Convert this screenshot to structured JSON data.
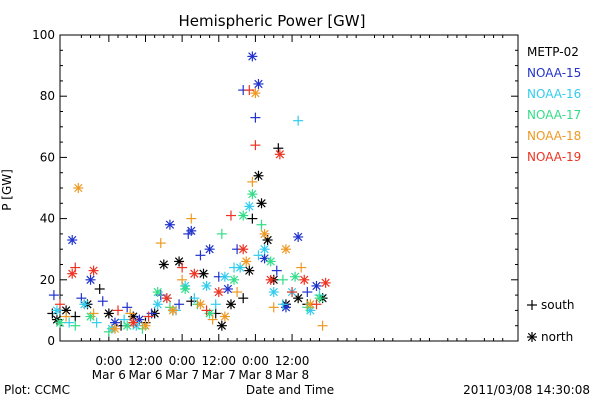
{
  "chart_data": {
    "type": "scatter",
    "title": "Hemispheric Power [GW]",
    "xlabel": "Date and Time",
    "ylabel": "P [GW]",
    "ylim": [
      0,
      100
    ],
    "xlim_hours": [
      -16,
      134
    ],
    "y_ticks": [
      0,
      20,
      40,
      60,
      80,
      100
    ],
    "x_ticks": [
      {
        "hour": 0,
        "time": "0:00",
        "date": "Mar 6"
      },
      {
        "hour": 12,
        "time": "12:00",
        "date": "Mar 6"
      },
      {
        "hour": 24,
        "time": "0:00",
        "date": "Mar 7"
      },
      {
        "hour": 36,
        "time": "12:00",
        "date": "Mar 7"
      },
      {
        "hour": 48,
        "time": "0:00",
        "date": "Mar 8"
      },
      {
        "hour": 60,
        "time": "12:00",
        "date": "Mar 8"
      }
    ],
    "grid": false,
    "legend_placement": "right",
    "series": [
      {
        "name": "METP-02",
        "color": "#000000"
      },
      {
        "name": "NOAA-15",
        "color": "#2233cc"
      },
      {
        "name": "NOAA-16",
        "color": "#33ccee"
      },
      {
        "name": "NOAA-17",
        "color": "#33dd88"
      },
      {
        "name": "NOAA-18",
        "color": "#ee9922"
      },
      {
        "name": "NOAA-19",
        "color": "#ee3322"
      }
    ],
    "marker_legend": [
      {
        "symbol": "+",
        "label": "south"
      },
      {
        "symbol": "*",
        "label": "north"
      }
    ],
    "points": [
      {
        "s": 0,
        "h": -18.5,
        "y": 9,
        "m": "+"
      },
      {
        "s": 0,
        "h": -17,
        "y": 7,
        "m": "*"
      },
      {
        "s": 0,
        "h": -14,
        "y": 10,
        "m": "*"
      },
      {
        "s": 0,
        "h": -11,
        "y": 8,
        "m": "+"
      },
      {
        "s": 0,
        "h": -7,
        "y": 12,
        "m": "*"
      },
      {
        "s": 0,
        "h": -3,
        "y": 17,
        "m": "+"
      },
      {
        "s": 0,
        "h": 0,
        "y": 9,
        "m": "*"
      },
      {
        "s": 0,
        "h": 4,
        "y": 5,
        "m": "+"
      },
      {
        "s": 0,
        "h": 8,
        "y": 8,
        "m": "*"
      },
      {
        "s": 0,
        "h": 12,
        "y": 6,
        "m": "+"
      },
      {
        "s": 0,
        "h": 15,
        "y": 9,
        "m": "*"
      },
      {
        "s": 0,
        "h": 18,
        "y": 25,
        "m": "*"
      },
      {
        "s": 0,
        "h": 21,
        "y": 10,
        "m": "+"
      },
      {
        "s": 0,
        "h": 23,
        "y": 26,
        "m": "*"
      },
      {
        "s": 0,
        "h": 27,
        "y": 13,
        "m": "+"
      },
      {
        "s": 0,
        "h": 31,
        "y": 22,
        "m": "*"
      },
      {
        "s": 0,
        "h": 35,
        "y": 9,
        "m": "+"
      },
      {
        "s": 0,
        "h": 37,
        "y": 5,
        "m": "*"
      },
      {
        "s": 0,
        "h": 40,
        "y": 12,
        "m": "*"
      },
      {
        "s": 0,
        "h": 44,
        "y": 14,
        "m": "+"
      },
      {
        "s": 0,
        "h": 46,
        "y": 23,
        "m": "*"
      },
      {
        "s": 0,
        "h": 47,
        "y": 40,
        "m": "+"
      },
      {
        "s": 0,
        "h": 49,
        "y": 54,
        "m": "*"
      },
      {
        "s": 0,
        "h": 50,
        "y": 45,
        "m": "*"
      },
      {
        "s": 0,
        "h": 52,
        "y": 33,
        "m": "*"
      },
      {
        "s": 0,
        "h": 54,
        "y": 20,
        "m": "*"
      },
      {
        "s": 0,
        "h": 55.5,
        "y": 63,
        "m": "+"
      },
      {
        "s": 0,
        "h": 58,
        "y": 12,
        "m": "*"
      },
      {
        "s": 0,
        "h": 62,
        "y": 14,
        "m": "*"
      },
      {
        "s": 0,
        "h": 65,
        "y": 12,
        "m": "+"
      },
      {
        "s": 0,
        "h": 70,
        "y": 14,
        "m": "*"
      },
      {
        "s": 1,
        "h": -18,
        "y": 15,
        "m": "+"
      },
      {
        "s": 1,
        "h": -12,
        "y": 33,
        "m": "*"
      },
      {
        "s": 1,
        "h": -9,
        "y": 14,
        "m": "+"
      },
      {
        "s": 1,
        "h": -6,
        "y": 20,
        "m": "*"
      },
      {
        "s": 1,
        "h": -2,
        "y": 13,
        "m": "+"
      },
      {
        "s": 1,
        "h": 2,
        "y": 6,
        "m": "*"
      },
      {
        "s": 1,
        "h": 6,
        "y": 11,
        "m": "+"
      },
      {
        "s": 1,
        "h": 10,
        "y": 7,
        "m": "*"
      },
      {
        "s": 1,
        "h": 14,
        "y": 9,
        "m": "+"
      },
      {
        "s": 1,
        "h": 17,
        "y": 15,
        "m": "+"
      },
      {
        "s": 1,
        "h": 20,
        "y": 38,
        "m": "*"
      },
      {
        "s": 1,
        "h": 23,
        "y": 12,
        "m": "+"
      },
      {
        "s": 1,
        "h": 26,
        "y": 35,
        "m": "+"
      },
      {
        "s": 1,
        "h": 27,
        "y": 36,
        "m": "*"
      },
      {
        "s": 1,
        "h": 30,
        "y": 28,
        "m": "+"
      },
      {
        "s": 1,
        "h": 33,
        "y": 30,
        "m": "*"
      },
      {
        "s": 1,
        "h": 36,
        "y": 21,
        "m": "+"
      },
      {
        "s": 1,
        "h": 39,
        "y": 17,
        "m": "*"
      },
      {
        "s": 1,
        "h": 42,
        "y": 30,
        "m": "+"
      },
      {
        "s": 1,
        "h": 44,
        "y": 82,
        "m": "+"
      },
      {
        "s": 1,
        "h": 47,
        "y": 93,
        "m": "*"
      },
      {
        "s": 1,
        "h": 48,
        "y": 73,
        "m": "+"
      },
      {
        "s": 1,
        "h": 49,
        "y": 84,
        "m": "*"
      },
      {
        "s": 1,
        "h": 51,
        "y": 27,
        "m": "*"
      },
      {
        "s": 1,
        "h": 55,
        "y": 23,
        "m": "+"
      },
      {
        "s": 1,
        "h": 58,
        "y": 11,
        "m": "*"
      },
      {
        "s": 1,
        "h": 62,
        "y": 34,
        "m": "*"
      },
      {
        "s": 1,
        "h": 65,
        "y": 16,
        "m": "+"
      },
      {
        "s": 1,
        "h": 68,
        "y": 18,
        "m": "*"
      },
      {
        "s": 2,
        "h": -17,
        "y": 10,
        "m": "*"
      },
      {
        "s": 2,
        "h": -13,
        "y": 6,
        "m": "+"
      },
      {
        "s": 2,
        "h": -8,
        "y": 12,
        "m": "*"
      },
      {
        "s": 2,
        "h": -4,
        "y": 6,
        "m": "+"
      },
      {
        "s": 2,
        "h": 1,
        "y": 4,
        "m": "*"
      },
      {
        "s": 2,
        "h": 5,
        "y": 7,
        "m": "+"
      },
      {
        "s": 2,
        "h": 9,
        "y": 5,
        "m": "*"
      },
      {
        "s": 2,
        "h": 13,
        "y": 8,
        "m": "+"
      },
      {
        "s": 2,
        "h": 16,
        "y": 12,
        "m": "*"
      },
      {
        "s": 2,
        "h": 19,
        "y": 14,
        "m": "*"
      },
      {
        "s": 2,
        "h": 22,
        "y": 10,
        "m": "+"
      },
      {
        "s": 2,
        "h": 25,
        "y": 18,
        "m": "*"
      },
      {
        "s": 2,
        "h": 28,
        "y": 14,
        "m": "+"
      },
      {
        "s": 2,
        "h": 32,
        "y": 18,
        "m": "*"
      },
      {
        "s": 2,
        "h": 35,
        "y": 12,
        "m": "+"
      },
      {
        "s": 2,
        "h": 38,
        "y": 21,
        "m": "*"
      },
      {
        "s": 2,
        "h": 41,
        "y": 24,
        "m": "+"
      },
      {
        "s": 2,
        "h": 43,
        "y": 24,
        "m": "*"
      },
      {
        "s": 2,
        "h": 46,
        "y": 44,
        "m": "*"
      },
      {
        "s": 2,
        "h": 49,
        "y": 28,
        "m": "+"
      },
      {
        "s": 2,
        "h": 51,
        "y": 30,
        "m": "*"
      },
      {
        "s": 2,
        "h": 54,
        "y": 16,
        "m": "*"
      },
      {
        "s": 2,
        "h": 57,
        "y": 12,
        "m": "+"
      },
      {
        "s": 2,
        "h": 60,
        "y": 16,
        "m": "*"
      },
      {
        "s": 2,
        "h": 62,
        "y": 72,
        "m": "+"
      },
      {
        "s": 2,
        "h": 66,
        "y": 10,
        "m": "*"
      },
      {
        "s": 2,
        "h": 69,
        "y": 15,
        "m": "+"
      },
      {
        "s": 3,
        "h": -16,
        "y": 6,
        "m": "*"
      },
      {
        "s": 3,
        "h": -11,
        "y": 5,
        "m": "+"
      },
      {
        "s": 3,
        "h": -6,
        "y": 8,
        "m": "*"
      },
      {
        "s": 3,
        "h": 0,
        "y": 3,
        "m": "+"
      },
      {
        "s": 3,
        "h": 6,
        "y": 5,
        "m": "*"
      },
      {
        "s": 3,
        "h": 11,
        "y": 4,
        "m": "+"
      },
      {
        "s": 3,
        "h": 16,
        "y": 16,
        "m": "*"
      },
      {
        "s": 3,
        "h": 20,
        "y": 11,
        "m": "+"
      },
      {
        "s": 3,
        "h": 25,
        "y": 17,
        "m": "*"
      },
      {
        "s": 3,
        "h": 29,
        "y": 12,
        "m": "+"
      },
      {
        "s": 3,
        "h": 33,
        "y": 9,
        "m": "*"
      },
      {
        "s": 3,
        "h": 37,
        "y": 35,
        "m": "+"
      },
      {
        "s": 3,
        "h": 41,
        "y": 20,
        "m": "*"
      },
      {
        "s": 3,
        "h": 44,
        "y": 41,
        "m": "*"
      },
      {
        "s": 3,
        "h": 47,
        "y": 48,
        "m": "*"
      },
      {
        "s": 3,
        "h": 50,
        "y": 38,
        "m": "+"
      },
      {
        "s": 3,
        "h": 53,
        "y": 26,
        "m": "*"
      },
      {
        "s": 3,
        "h": 57,
        "y": 20,
        "m": "+"
      },
      {
        "s": 3,
        "h": 61,
        "y": 21,
        "m": "*"
      },
      {
        "s": 3,
        "h": 65,
        "y": 11,
        "m": "+"
      },
      {
        "s": 3,
        "h": 69,
        "y": 14,
        "m": "*"
      },
      {
        "s": 4,
        "h": -14,
        "y": 8,
        "m": "+"
      },
      {
        "s": 4,
        "h": -10,
        "y": 50,
        "m": "*"
      },
      {
        "s": 4,
        "h": -5,
        "y": 9,
        "m": "+"
      },
      {
        "s": 4,
        "h": 2,
        "y": 4,
        "m": "*"
      },
      {
        "s": 4,
        "h": 7,
        "y": 9,
        "m": "+"
      },
      {
        "s": 4,
        "h": 12,
        "y": 5,
        "m": "*"
      },
      {
        "s": 4,
        "h": 17,
        "y": 32,
        "m": "+"
      },
      {
        "s": 4,
        "h": 21,
        "y": 10,
        "m": "*"
      },
      {
        "s": 4,
        "h": 24,
        "y": 20,
        "m": "+"
      },
      {
        "s": 4,
        "h": 27,
        "y": 40,
        "m": "+"
      },
      {
        "s": 4,
        "h": 30,
        "y": 12,
        "m": "*"
      },
      {
        "s": 4,
        "h": 34,
        "y": 7,
        "m": "+"
      },
      {
        "s": 4,
        "h": 38,
        "y": 8,
        "m": "*"
      },
      {
        "s": 4,
        "h": 42,
        "y": 16,
        "m": "+"
      },
      {
        "s": 4,
        "h": 45,
        "y": 26,
        "m": "*"
      },
      {
        "s": 4,
        "h": 47,
        "y": 52,
        "m": "+"
      },
      {
        "s": 4,
        "h": 48,
        "y": 81,
        "m": "*"
      },
      {
        "s": 4,
        "h": 51,
        "y": 35,
        "m": "*"
      },
      {
        "s": 4,
        "h": 54,
        "y": 11,
        "m": "+"
      },
      {
        "s": 4,
        "h": 58,
        "y": 30,
        "m": "*"
      },
      {
        "s": 4,
        "h": 63,
        "y": 24,
        "m": "+"
      },
      {
        "s": 4,
        "h": 66,
        "y": 12,
        "m": "*"
      },
      {
        "s": 4,
        "h": 70,
        "y": 5,
        "m": "+"
      },
      {
        "s": 5,
        "h": -16,
        "y": 12,
        "m": "+"
      },
      {
        "s": 5,
        "h": -12,
        "y": 22,
        "m": "*"
      },
      {
        "s": 5,
        "h": -11,
        "y": 24,
        "m": "+"
      },
      {
        "s": 5,
        "h": -5,
        "y": 23,
        "m": "*"
      },
      {
        "s": 5,
        "h": 3,
        "y": 10,
        "m": "+"
      },
      {
        "s": 5,
        "h": 8,
        "y": 6,
        "m": "*"
      },
      {
        "s": 5,
        "h": 13,
        "y": 8,
        "m": "+"
      },
      {
        "s": 5,
        "h": 19,
        "y": 14,
        "m": "*"
      },
      {
        "s": 5,
        "h": 24,
        "y": 24,
        "m": "+"
      },
      {
        "s": 5,
        "h": 28,
        "y": 22,
        "m": "*"
      },
      {
        "s": 5,
        "h": 32,
        "y": 10,
        "m": "+"
      },
      {
        "s": 5,
        "h": 36,
        "y": 16,
        "m": "*"
      },
      {
        "s": 5,
        "h": 40,
        "y": 41,
        "m": "+"
      },
      {
        "s": 5,
        "h": 44,
        "y": 30,
        "m": "*"
      },
      {
        "s": 5,
        "h": 46,
        "y": 82,
        "m": "+"
      },
      {
        "s": 5,
        "h": 48,
        "y": 64,
        "m": "+"
      },
      {
        "s": 5,
        "h": 53,
        "y": 20,
        "m": "*"
      },
      {
        "s": 5,
        "h": 56,
        "y": 61,
        "m": "*"
      },
      {
        "s": 5,
        "h": 60,
        "y": 16,
        "m": "+"
      },
      {
        "s": 5,
        "h": 64,
        "y": 20,
        "m": "*"
      },
      {
        "s": 5,
        "h": 68,
        "y": 12,
        "m": "+"
      },
      {
        "s": 5,
        "h": 71,
        "y": 19,
        "m": "*"
      }
    ]
  },
  "footer": {
    "left": "Plot: CCMC",
    "right": "2011/03/08 14:30:08"
  }
}
